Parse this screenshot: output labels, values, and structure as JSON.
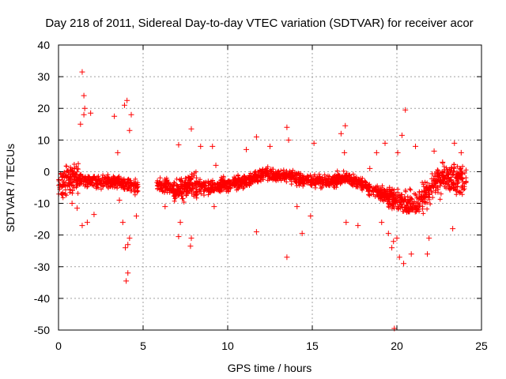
{
  "chart_data": {
    "type": "scatter",
    "title": "Day 218 of 2011, Sidereal Day-to-day VTEC variation (SDTVAR) for receiver acor",
    "xlabel": "GPS time / hours",
    "ylabel": "SDTVAR / TECUs",
    "xlim": [
      0,
      25
    ],
    "ylim": [
      -50,
      40
    ],
    "xticks": [
      0,
      5,
      10,
      15,
      20,
      25
    ],
    "yticks": [
      -50,
      -40,
      -30,
      -20,
      -10,
      0,
      10,
      20,
      30,
      40
    ],
    "grid": true,
    "marker": "+",
    "color": "#ff0000",
    "gaps_hours": [
      [
        4.7,
        5.8
      ]
    ],
    "trend": [
      {
        "x": 0.0,
        "y": -4
      },
      {
        "x": 0.5,
        "y": -2
      },
      {
        "x": 1.0,
        "y": -2
      },
      {
        "x": 1.5,
        "y": -3
      },
      {
        "x": 2.0,
        "y": -3
      },
      {
        "x": 2.5,
        "y": -3
      },
      {
        "x": 3.0,
        "y": -3
      },
      {
        "x": 3.5,
        "y": -3
      },
      {
        "x": 4.0,
        "y": -4
      },
      {
        "x": 4.7,
        "y": -5
      },
      {
        "x": 5.8,
        "y": -4
      },
      {
        "x": 6.5,
        "y": -5
      },
      {
        "x": 7.0,
        "y": -6
      },
      {
        "x": 7.5,
        "y": -5
      },
      {
        "x": 8.0,
        "y": -4
      },
      {
        "x": 9.0,
        "y": -5
      },
      {
        "x": 10.0,
        "y": -4
      },
      {
        "x": 11.0,
        "y": -3
      },
      {
        "x": 12.0,
        "y": -1
      },
      {
        "x": 13.0,
        "y": -1
      },
      {
        "x": 14.0,
        "y": -2
      },
      {
        "x": 15.0,
        "y": -3
      },
      {
        "x": 16.0,
        "y": -3
      },
      {
        "x": 17.0,
        "y": -2
      },
      {
        "x": 18.0,
        "y": -4
      },
      {
        "x": 19.0,
        "y": -7
      },
      {
        "x": 20.0,
        "y": -9
      },
      {
        "x": 20.5,
        "y": -10
      },
      {
        "x": 21.0,
        "y": -10
      },
      {
        "x": 21.5,
        "y": -8
      },
      {
        "x": 22.0,
        "y": -5
      },
      {
        "x": 22.5,
        "y": -2
      },
      {
        "x": 23.0,
        "y": -2
      },
      {
        "x": 23.5,
        "y": -2
      },
      {
        "x": 24.0,
        "y": -3
      }
    ],
    "outliers": [
      {
        "x": 1.4,
        "y": 31.5
      },
      {
        "x": 1.5,
        "y": 24
      },
      {
        "x": 1.55,
        "y": 20
      },
      {
        "x": 1.5,
        "y": 18
      },
      {
        "x": 1.3,
        "y": 15
      },
      {
        "x": 1.9,
        "y": 18.5
      },
      {
        "x": 1.4,
        "y": -17
      },
      {
        "x": 1.7,
        "y": -16
      },
      {
        "x": 2.1,
        "y": -13.5
      },
      {
        "x": 1.1,
        "y": -11.5
      },
      {
        "x": 0.8,
        "y": -10
      },
      {
        "x": 3.3,
        "y": 17.5
      },
      {
        "x": 4.05,
        "y": 22.5
      },
      {
        "x": 4.3,
        "y": 18
      },
      {
        "x": 4.2,
        "y": 13
      },
      {
        "x": 3.9,
        "y": 21
      },
      {
        "x": 4.0,
        "y": -34.5
      },
      {
        "x": 4.1,
        "y": -32
      },
      {
        "x": 3.95,
        "y": -24
      },
      {
        "x": 4.1,
        "y": -23
      },
      {
        "x": 4.2,
        "y": -21
      },
      {
        "x": 3.8,
        "y": -16
      },
      {
        "x": 4.6,
        "y": -14
      },
      {
        "x": 3.6,
        "y": -9
      },
      {
        "x": 3.5,
        "y": 6
      },
      {
        "x": 6.3,
        "y": -11
      },
      {
        "x": 7.1,
        "y": 8.5
      },
      {
        "x": 7.1,
        "y": -20.5
      },
      {
        "x": 7.2,
        "y": -16
      },
      {
        "x": 7.85,
        "y": 13.5
      },
      {
        "x": 7.8,
        "y": -23.5
      },
      {
        "x": 7.85,
        "y": -21
      },
      {
        "x": 8.4,
        "y": 8
      },
      {
        "x": 9.1,
        "y": 8
      },
      {
        "x": 9.2,
        "y": -11
      },
      {
        "x": 9.3,
        "y": 2
      },
      {
        "x": 11.1,
        "y": 7
      },
      {
        "x": 11.7,
        "y": 11
      },
      {
        "x": 11.7,
        "y": -19
      },
      {
        "x": 12.5,
        "y": 8
      },
      {
        "x": 13.5,
        "y": 14
      },
      {
        "x": 13.5,
        "y": -27
      },
      {
        "x": 13.6,
        "y": 10
      },
      {
        "x": 14.4,
        "y": -19.5
      },
      {
        "x": 14.9,
        "y": -14
      },
      {
        "x": 15.1,
        "y": 9
      },
      {
        "x": 14.1,
        "y": -11
      },
      {
        "x": 16.7,
        "y": 12
      },
      {
        "x": 16.95,
        "y": 14.5
      },
      {
        "x": 17.0,
        "y": -16
      },
      {
        "x": 16.9,
        "y": 6
      },
      {
        "x": 17.7,
        "y": -17
      },
      {
        "x": 18.4,
        "y": 1
      },
      {
        "x": 18.8,
        "y": 6
      },
      {
        "x": 19.1,
        "y": -16
      },
      {
        "x": 19.3,
        "y": 9
      },
      {
        "x": 19.5,
        "y": -19.5
      },
      {
        "x": 19.7,
        "y": -24
      },
      {
        "x": 19.8,
        "y": -22
      },
      {
        "x": 19.85,
        "y": -49.5
      },
      {
        "x": 20.0,
        "y": -21
      },
      {
        "x": 20.05,
        "y": 6
      },
      {
        "x": 20.3,
        "y": 11.5
      },
      {
        "x": 20.5,
        "y": 19.5
      },
      {
        "x": 20.4,
        "y": -29
      },
      {
        "x": 20.15,
        "y": -27
      },
      {
        "x": 20.85,
        "y": -26
      },
      {
        "x": 21.1,
        "y": 8
      },
      {
        "x": 21.8,
        "y": -26
      },
      {
        "x": 21.9,
        "y": -21
      },
      {
        "x": 22.2,
        "y": 6.5
      },
      {
        "x": 22.7,
        "y": 3
      },
      {
        "x": 23.3,
        "y": -18
      },
      {
        "x": 23.4,
        "y": 9
      },
      {
        "x": 23.8,
        "y": 6
      }
    ]
  }
}
